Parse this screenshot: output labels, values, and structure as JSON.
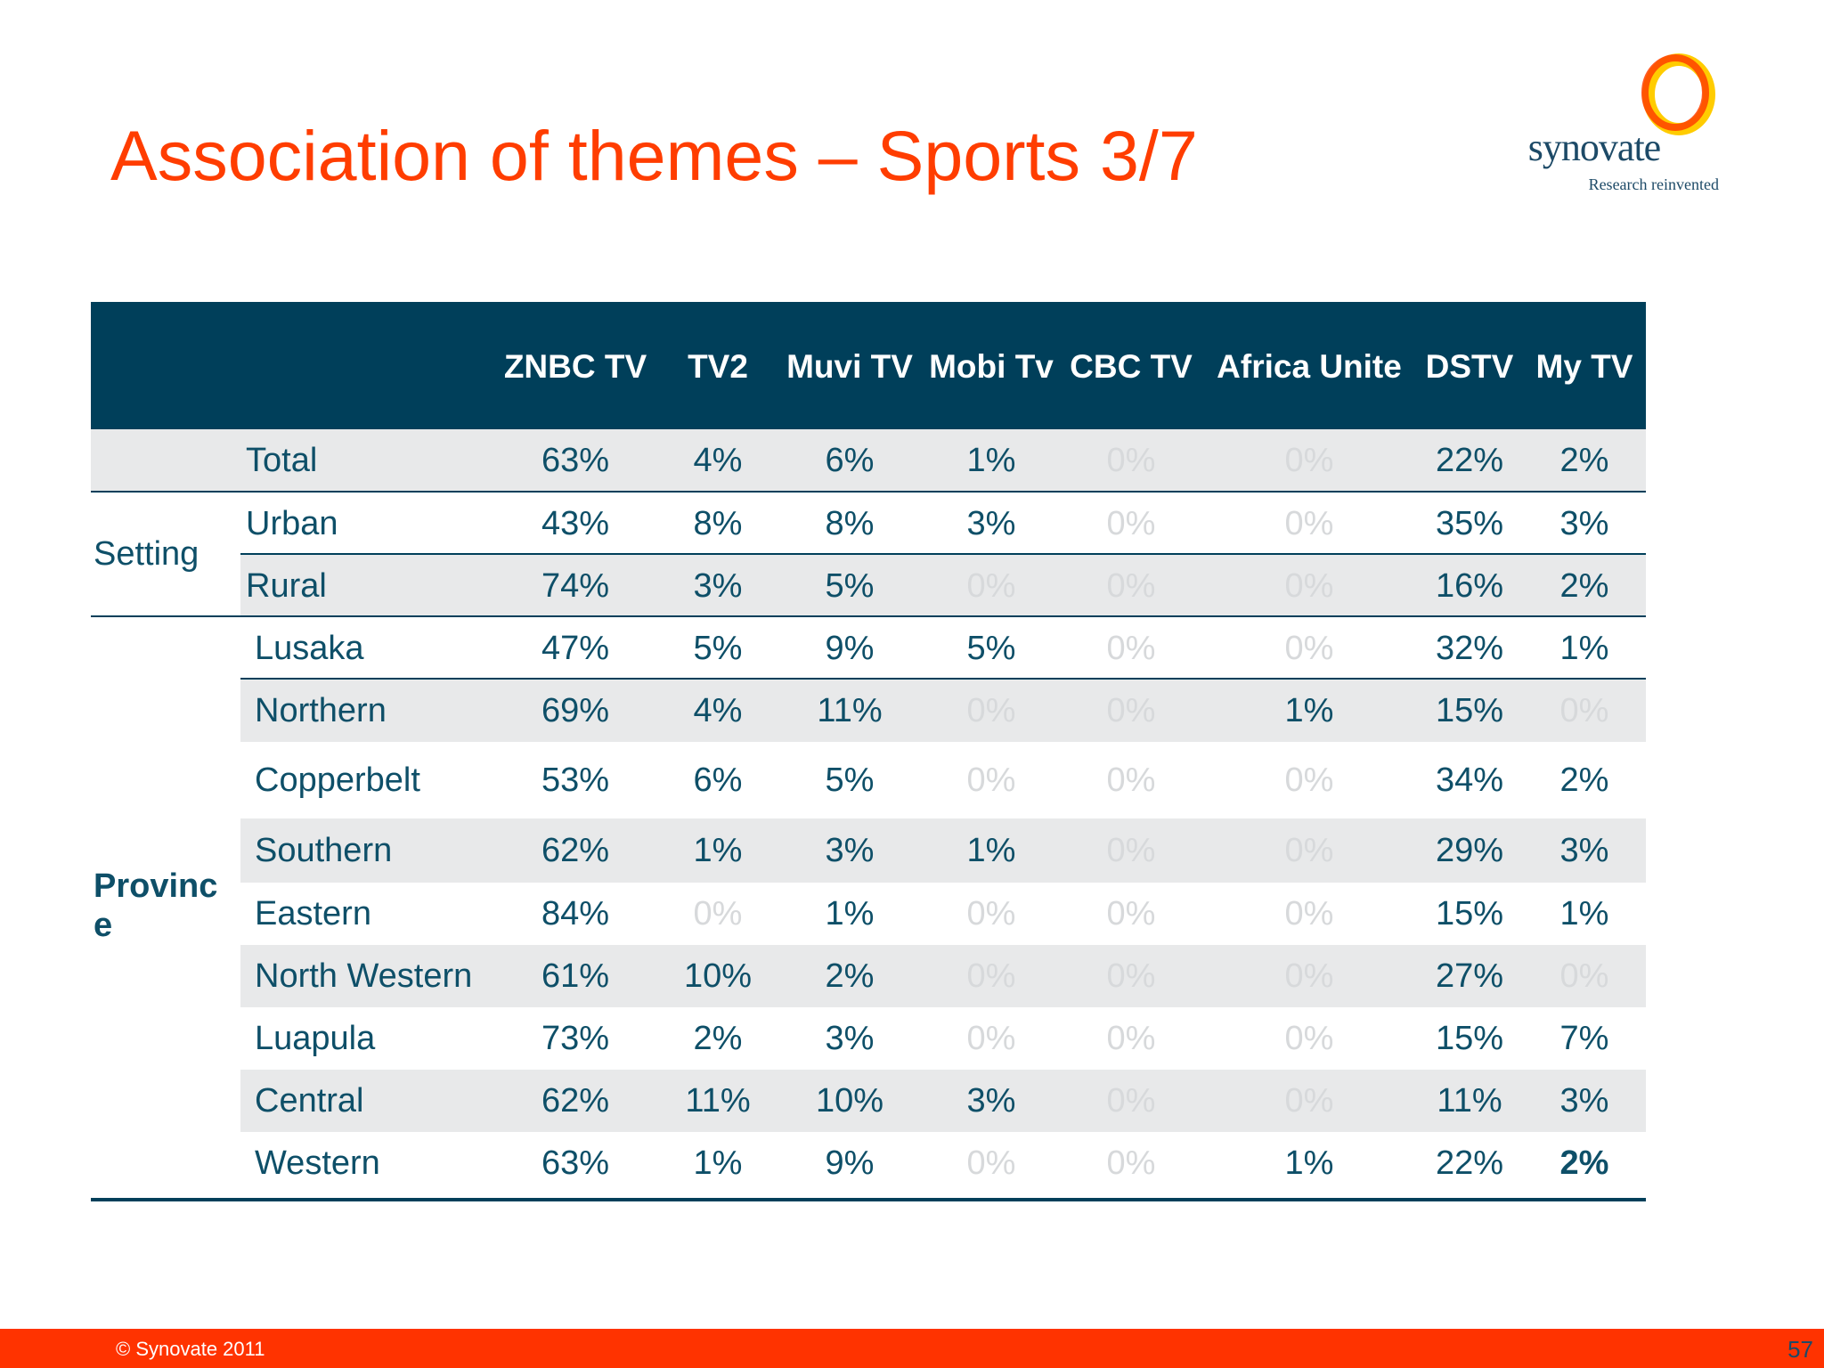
{
  "title": "Association of themes – Sports 3/7",
  "logo": {
    "wordmark": "synovate",
    "tagline": "Research reinvented",
    "colors": {
      "ring_outer": "#ff4000",
      "ring_inner": "#ffcc00",
      "text": "#1d4a67"
    }
  },
  "table": {
    "header_color": "#003f5a",
    "columns": [
      "ZNBC TV",
      "TV2",
      "Muvi TV",
      "Mobi Tv",
      "CBC TV",
      "Africa Unite",
      "DSTV",
      "My TV"
    ],
    "groups": [
      {
        "label": "",
        "rows": [
          0
        ]
      },
      {
        "label": "Setting",
        "rows": [
          1,
          2
        ]
      },
      {
        "label": "Provinc\ne",
        "rows": [
          3,
          4,
          5,
          6,
          7,
          8,
          9,
          10,
          11
        ]
      }
    ],
    "rows": [
      {
        "label": "Total",
        "values": [
          "63%",
          "4%",
          "6%",
          "1%",
          "0%",
          "0%",
          "22%",
          "2%"
        ]
      },
      {
        "label": "Urban",
        "values": [
          "43%",
          "8%",
          "8%",
          "3%",
          "0%",
          "0%",
          "35%",
          "3%"
        ]
      },
      {
        "label": "Rural",
        "values": [
          "74%",
          "3%",
          "5%",
          "0%",
          "0%",
          "0%",
          "16%",
          "2%"
        ]
      },
      {
        "label": "Lusaka",
        "values": [
          "47%",
          "5%",
          "9%",
          "5%",
          "0%",
          "0%",
          "32%",
          "1%"
        ]
      },
      {
        "label": "Northern",
        "values": [
          "69%",
          "4%",
          "11%",
          "0%",
          "0%",
          "1%",
          "15%",
          "0%"
        ]
      },
      {
        "label": "Copperbelt",
        "values": [
          "53%",
          "6%",
          "5%",
          "0%",
          "0%",
          "0%",
          "34%",
          "2%"
        ]
      },
      {
        "label": "Southern",
        "values": [
          "62%",
          "1%",
          "3%",
          "1%",
          "0%",
          "0%",
          "29%",
          "3%"
        ]
      },
      {
        "label": "Eastern",
        "values": [
          "84%",
          "0%",
          "1%",
          "0%",
          "0%",
          "0%",
          "15%",
          "1%"
        ]
      },
      {
        "label": "North Western",
        "values": [
          "61%",
          "10%",
          "2%",
          "0%",
          "0%",
          "0%",
          "27%",
          "0%"
        ]
      },
      {
        "label": "Luapula",
        "values": [
          "73%",
          "2%",
          "3%",
          "0%",
          "0%",
          "0%",
          "15%",
          "7%"
        ]
      },
      {
        "label": "Central",
        "values": [
          "62%",
          "11%",
          "10%",
          "3%",
          "0%",
          "0%",
          "11%",
          "3%"
        ]
      },
      {
        "label": "Western",
        "values": [
          "63%",
          "1%",
          "9%",
          "0%",
          "0%",
          "1%",
          "22%",
          "2%"
        ]
      }
    ]
  },
  "footer": {
    "copyright": "© Synovate 2011",
    "page_number": "57",
    "color": "#ff3300"
  }
}
